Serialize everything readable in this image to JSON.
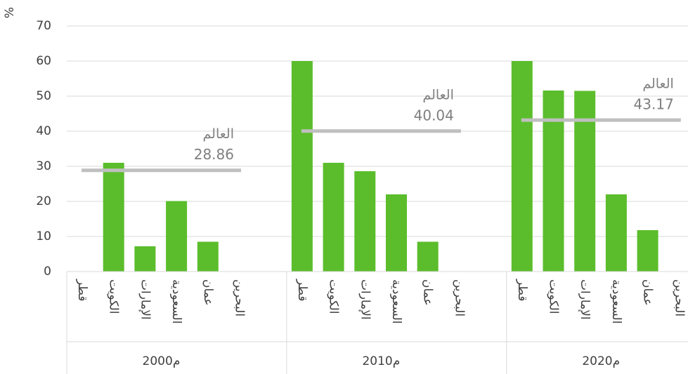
{
  "chart_data": {
    "type": "bar",
    "y_label": "%",
    "categories": [
      "قطر",
      "الكويت",
      "الإمارات",
      "السعودية",
      "عمان",
      "البحرين"
    ],
    "groups": [
      {
        "name": "2000م",
        "values": [
          null,
          31,
          7.2,
          20.1,
          8.5,
          null
        ],
        "reference": 28.86
      },
      {
        "name": "2010م",
        "values": [
          60,
          31,
          28.6,
          22,
          8.5,
          null
        ],
        "reference": 40.04
      },
      {
        "name": "2020م",
        "values": [
          60,
          51.6,
          51.5,
          22,
          11.8,
          null
        ],
        "reference": 43.17
      }
    ],
    "reference_label": "العالم",
    "color": "#5bbd2b",
    "reference_color": "#bfbfbf",
    "ylim": [
      0,
      70
    ],
    "yticks": [
      0,
      10,
      20,
      30,
      40,
      50,
      60,
      70
    ],
    "grid": true
  }
}
